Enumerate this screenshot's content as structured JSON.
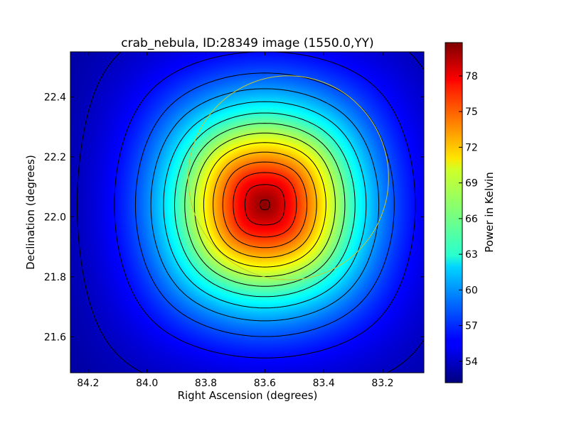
{
  "chart_data": {
    "type": "heatmap",
    "title": "crab_nebula, ID:28349 image (1550.0,YY)",
    "xlabel": "Right Ascension (degrees)",
    "ylabel": "Declination (degrees)",
    "xlim": [
      84.26,
      83.06
    ],
    "ylim": [
      21.48,
      22.55
    ],
    "x_ticks": [
      84.2,
      84.0,
      83.8,
      83.6,
      83.4,
      83.2
    ],
    "x_tick_labels": [
      "84.2",
      "84.0",
      "83.8",
      "83.6",
      "83.4",
      "83.2"
    ],
    "y_ticks": [
      21.6,
      21.8,
      22.0,
      22.2,
      22.4
    ],
    "y_tick_labels": [
      "21.6",
      "21.8",
      "22.0",
      "22.2",
      "22.4"
    ],
    "peak": {
      "ra": 83.6,
      "dec": 22.04,
      "value": 80.5
    },
    "contour_levels": [
      50,
      52,
      54,
      56,
      58,
      60,
      62,
      64,
      66,
      68,
      70,
      72,
      74,
      76,
      78,
      80
    ],
    "circle": {
      "ra": 83.52,
      "dec": 22.13,
      "radius_deg": 0.34,
      "color": "#c8c832"
    },
    "colorbar": {
      "label": "Power in Kelvin",
      "min": 52.2,
      "max": 80.8,
      "colormap": "jet",
      "ticks": [
        54,
        57,
        60,
        63,
        66,
        69,
        72,
        75,
        78
      ],
      "tick_labels": [
        "54",
        "57",
        "60",
        "63",
        "66",
        "69",
        "72",
        "75",
        "78"
      ]
    },
    "grid": false
  }
}
